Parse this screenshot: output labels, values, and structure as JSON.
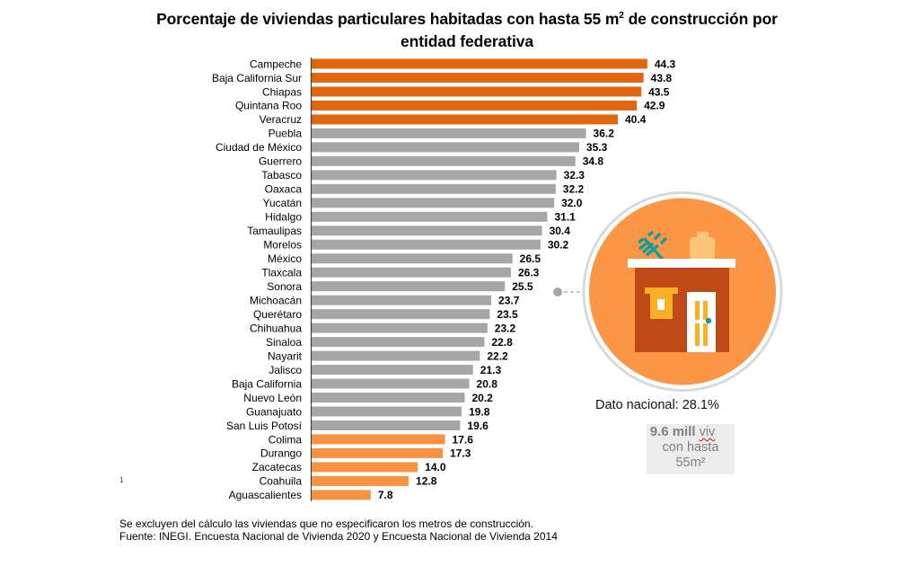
{
  "title": {
    "part1": "Porcentaje de viviendas particulares habitadas con hasta 55 m",
    "superscript": "2",
    "part2": " de construcción por",
    "line2": "entidad federativa"
  },
  "chart_data": {
    "type": "bar",
    "orientation": "horizontal",
    "title": "Porcentaje de viviendas particulares habitadas con hasta 55 m² de construcción por entidad federativa",
    "xlabel": "",
    "ylabel": "",
    "xlim": [
      0,
      45
    ],
    "grid": false,
    "legend": null,
    "categories": [
      "Campeche",
      "Baja California Sur",
      "Chiapas",
      "Quintana Roo",
      "Veracruz",
      "Puebla",
      "Ciudad de México",
      "Guerrero",
      "Tabasco",
      "Oaxaca",
      "Yucatán",
      "Hidalgo",
      "Tamaulipas",
      "Morelos",
      "México",
      "Tlaxcala",
      "Sonora",
      "Michoacán",
      "Querétaro",
      "Chihuahua",
      "Sinaloa",
      "Nayarit",
      "Jalisco",
      "Baja California",
      "Nuevo León",
      "Guanajuato",
      "San Luis Potosí",
      "Colima",
      "Durango",
      "Zacatecas",
      "Coahuila",
      "Aguascalientes"
    ],
    "values": [
      44.3,
      43.8,
      43.5,
      42.9,
      40.4,
      36.2,
      35.3,
      34.8,
      32.3,
      32.2,
      32.0,
      31.1,
      30.4,
      30.2,
      26.5,
      26.3,
      25.5,
      23.7,
      23.5,
      23.2,
      22.8,
      22.2,
      21.3,
      20.8,
      20.2,
      19.8,
      19.6,
      17.6,
      17.3,
      14.0,
      12.8,
      7.8
    ],
    "value_labels": [
      "44.3",
      "43.8",
      "43.5",
      "42.9",
      "40.4",
      "36.2",
      "35.3",
      "34.8",
      "32.3",
      "32.2",
      "32.0",
      "31.1",
      "30.4",
      "30.2",
      "26.5",
      "26.3",
      "25.5",
      "23.7",
      "23.5",
      "23.2",
      "22.8",
      "22.2",
      "21.3",
      "20.8",
      "20.2",
      "19.8",
      "19.6",
      "17.6",
      "17.3",
      "14.0",
      "12.8",
      "7.8"
    ],
    "groups": [
      "top",
      "top",
      "top",
      "top",
      "top",
      "mid",
      "mid",
      "mid",
      "mid",
      "mid",
      "mid",
      "mid",
      "mid",
      "mid",
      "mid",
      "mid",
      "mid",
      "mid",
      "mid",
      "mid",
      "mid",
      "mid",
      "mid",
      "mid",
      "mid",
      "mid",
      "mid",
      "bottom",
      "bottom",
      "bottom",
      "bottom",
      "bottom"
    ],
    "group_colors": {
      "top": "#E26510",
      "mid": "#A6A6A6",
      "bottom": "#FB9242"
    },
    "national_reference": {
      "label": "Dato nacional",
      "value": 28.1
    }
  },
  "infographic": {
    "dato_label": "Dato nacional: 28.1%",
    "stat_big": "9.6 mill",
    "stat_unit": "viv",
    "stat_line2": "con hasta",
    "stat_line3": "55m²",
    "colors": {
      "circle": "#FA9646",
      "ring": "#D9D9D9",
      "house_body": "#BF4A17",
      "roof": "#FFFFFF",
      "window": "#F9B024",
      "tank": "#FDC47A",
      "antenna": "#1A9A9A",
      "connector": "#A6A6A6"
    }
  },
  "footnote_mark": "1",
  "notes": {
    "line1": "Se excluyen del cálculo las viviendas que no especificaron los metros de construcción.",
    "line2": "Fuente: INEGI. Encuesta Nacional de Vivienda 2020 y Encuesta Nacional de Vivienda 2014"
  }
}
